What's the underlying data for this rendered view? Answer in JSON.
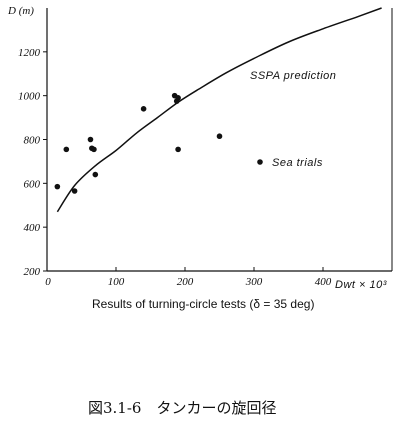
{
  "chart_data": {
    "type": "scatter",
    "ylabel": "D (m)",
    "xunit": "Dwt × 10³",
    "xlabel": "Results of turning-circle tests (δ = 35 deg)",
    "caption": "図3.1-6　タンカーの旋回径",
    "xlim": [
      0,
      500
    ],
    "ylim": [
      200,
      1400
    ],
    "yticks": [
      200,
      400,
      600,
      800,
      1000,
      1200
    ],
    "xticks": [
      100,
      200,
      300,
      400
    ],
    "xtick_labels": [
      "100",
      "200",
      "300",
      "400"
    ],
    "grid": false,
    "prediction": {
      "label": "SSPA prediction",
      "x": [
        15,
        40,
        70,
        100,
        130,
        160,
        190,
        220,
        260,
        300,
        350,
        400,
        450,
        485
      ],
      "y": [
        470,
        590,
        680,
        750,
        830,
        900,
        970,
        1030,
        1105,
        1170,
        1245,
        1305,
        1360,
        1400
      ]
    },
    "sea_trials": {
      "label": "Sea trials",
      "points": [
        {
          "x": 15,
          "y": 585
        },
        {
          "x": 28,
          "y": 755
        },
        {
          "x": 40,
          "y": 565
        },
        {
          "x": 63,
          "y": 800
        },
        {
          "x": 65,
          "y": 760
        },
        {
          "x": 68,
          "y": 755
        },
        {
          "x": 70,
          "y": 640
        },
        {
          "x": 140,
          "y": 940
        },
        {
          "x": 185,
          "y": 1000
        },
        {
          "x": 188,
          "y": 975
        },
        {
          "x": 190,
          "y": 990
        },
        {
          "x": 190,
          "y": 755
        },
        {
          "x": 250,
          "y": 815
        }
      ]
    }
  }
}
